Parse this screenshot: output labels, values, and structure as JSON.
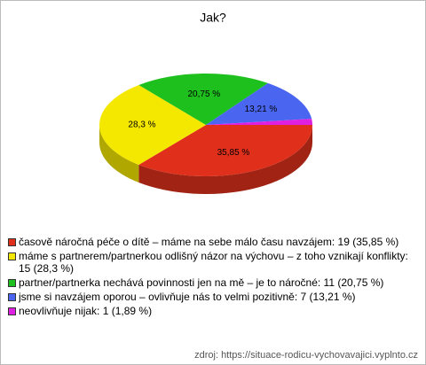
{
  "chart_data": {
    "type": "pie3d",
    "title": "Jak?",
    "categories": [
      "časově náročná péče o dítě – máme na sebe málo času navzájem: 19 (35,85 %)",
      "máme s partnerem/partnerkou odlišný názor na výchovu – z toho vznikají konflikty: 15 (28,3 %)",
      "partner/partnerka nechává povinnosti jen na mě – je to náročné: 11 (20,75 %)",
      "jsme si navzájem oporou – ovlivňuje nás to velmi pozitivně: 7 (13,21 %)",
      "neovlivňuje nijak: 1 (1,89 %)"
    ],
    "values": [
      35.85,
      28.3,
      20.75,
      13.21,
      1.89
    ],
    "value_labels": [
      "35,85 %",
      "28,3 %",
      "20,75 %",
      "13,21 %",
      null
    ],
    "colors": [
      "#e0301c",
      "#f5e800",
      "#1ec01e",
      "#4a66f0",
      "#e020e0"
    ],
    "legend": "bottom",
    "source": "zdroj: https://situace-rodicu-vychovavajici.vyplnto.cz"
  }
}
